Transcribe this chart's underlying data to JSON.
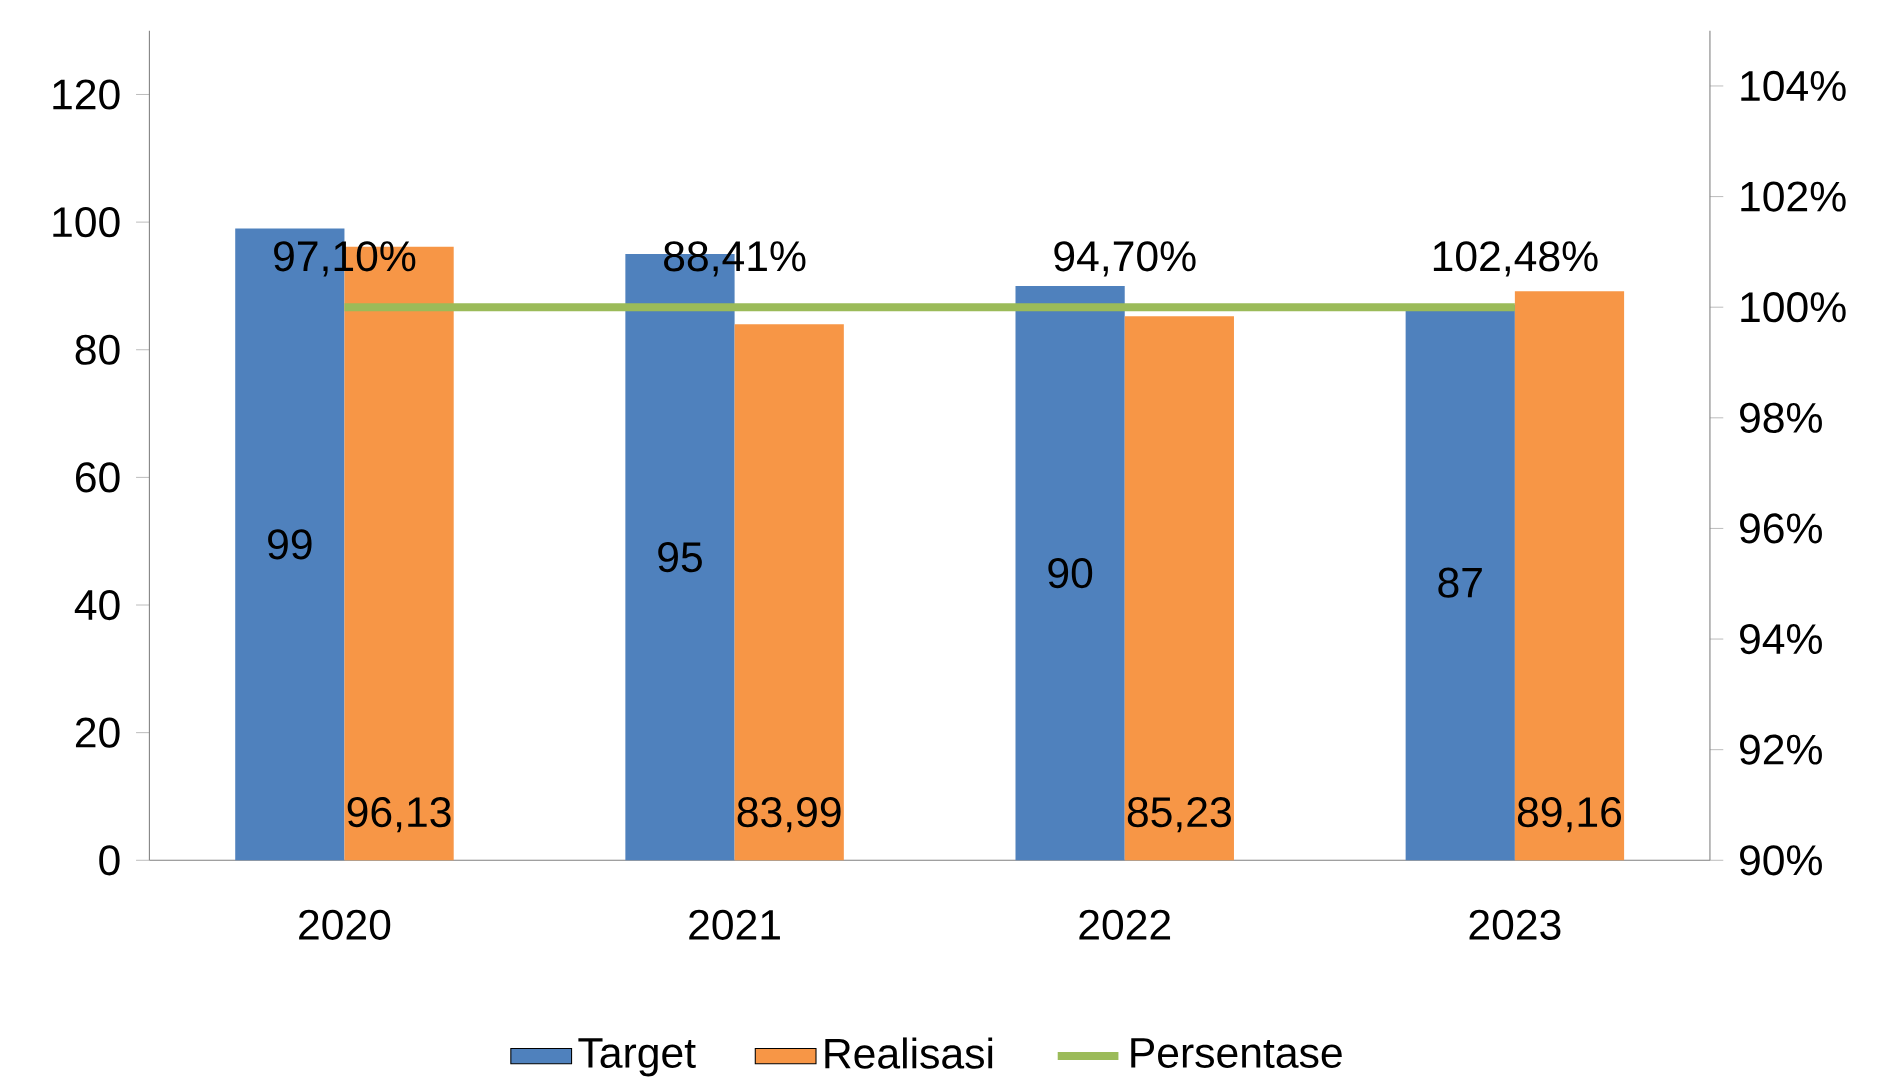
{
  "chart_data": {
    "type": "bar",
    "categories": [
      "2020",
      "2021",
      "2022",
      "2023"
    ],
    "series": [
      {
        "name": "Target",
        "color": "#4f81bd",
        "values": [
          99,
          95,
          90,
          87
        ],
        "value_labels": [
          "99",
          "95",
          "90",
          "87"
        ]
      },
      {
        "name": "Realisasi",
        "color": "#f79646",
        "values": [
          96.13,
          83.99,
          85.23,
          89.16
        ],
        "value_labels": [
          "96,13",
          "83,99",
          "85,23",
          "89,16"
        ]
      },
      {
        "name": "Persentase",
        "type": "line",
        "axis": "y2",
        "color": "#9bbb59",
        "values": [
          100,
          100,
          100,
          100
        ]
      }
    ],
    "ylim": [
      0,
      130
    ],
    "yticks": [
      0,
      20,
      40,
      60,
      80,
      100,
      120
    ],
    "y2lim": [
      90,
      105
    ],
    "y2ticks": [
      {
        "value": 90,
        "label": "90%"
      },
      {
        "value": 92,
        "label": "92%"
      },
      {
        "value": 94,
        "label": "94%"
      },
      {
        "value": 96,
        "label": "96%"
      },
      {
        "value": 98,
        "label": "98%"
      },
      {
        "value": 100,
        "label": "100%"
      },
      {
        "value": 102,
        "label": "102%"
      },
      {
        "value": 104,
        "label": "104%"
      }
    ],
    "annotations": [
      "97,10%",
      "88,41%",
      "94,70%",
      "102,48%"
    ],
    "legend": "bottom",
    "grid": false,
    "marker": "none"
  }
}
